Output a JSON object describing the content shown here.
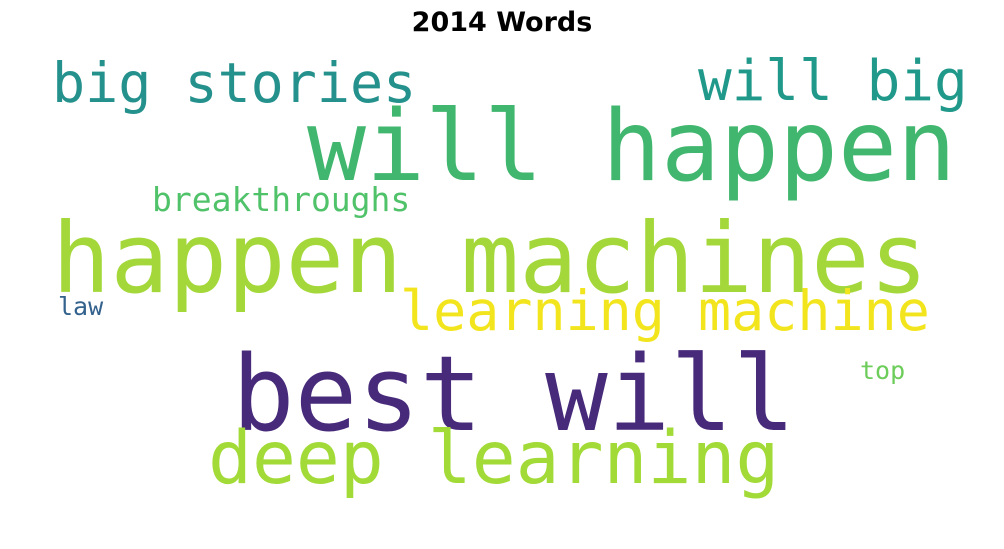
{
  "title": "2014 Words",
  "words": [
    {
      "text": "will happen",
      "color": "#41b66e"
    },
    {
      "text": "happen machines",
      "color": "#a4d83a"
    },
    {
      "text": "best will",
      "color": "#472a7a"
    },
    {
      "text": "deep learning",
      "color": "#a2da37"
    },
    {
      "text": "learning machine",
      "color": "#f2e51d"
    },
    {
      "text": "big stories",
      "color": "#25918d"
    },
    {
      "text": "will big",
      "color": "#20998b"
    },
    {
      "text": "breakthroughs",
      "color": "#50c26a"
    },
    {
      "text": "law",
      "color": "#33628d"
    },
    {
      "text": "top",
      "color": "#6ccd5a"
    }
  ]
}
